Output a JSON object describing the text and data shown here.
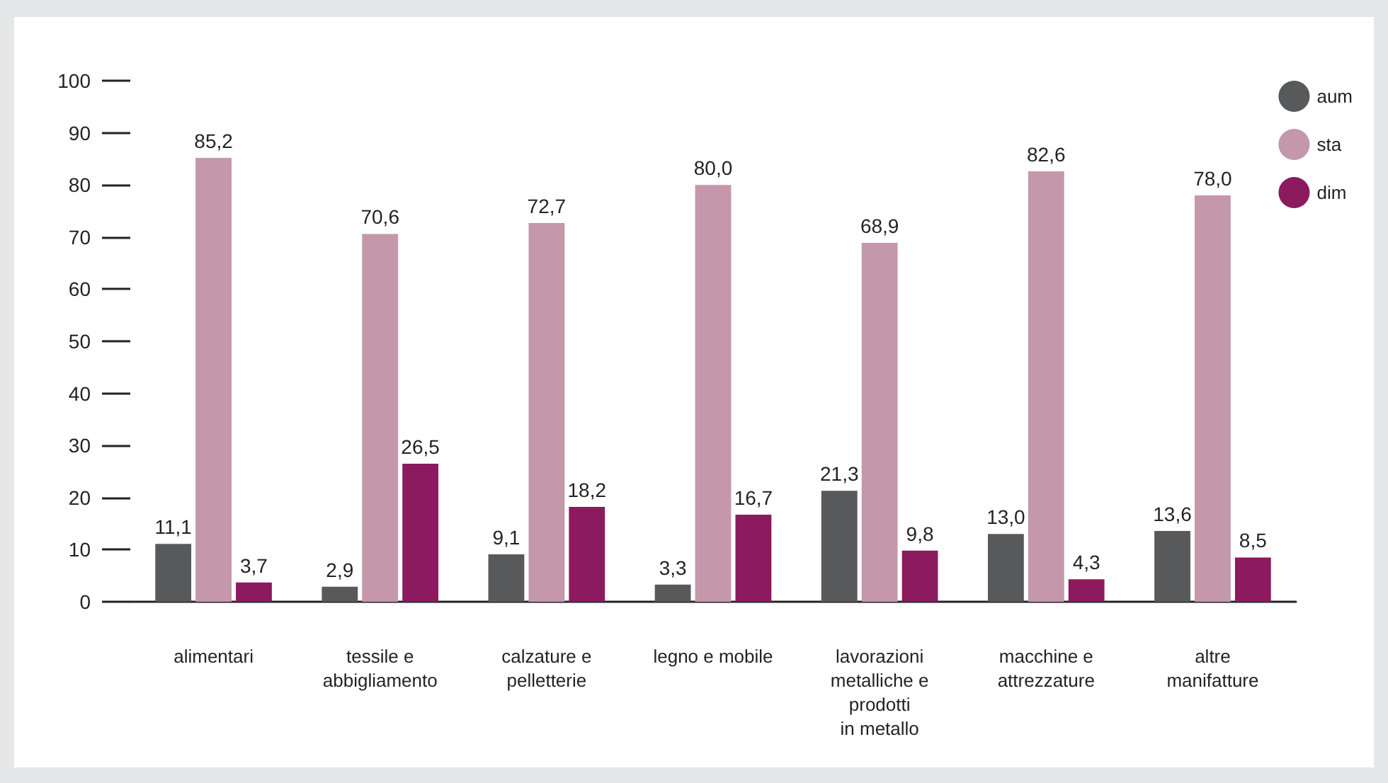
{
  "chart_data": {
    "type": "bar",
    "categories": [
      "alimentari",
      "tessile e\nabbigliamento",
      "calzature e\npelletterie",
      "legno e mobile",
      "lavorazioni\nmetalliche e\nprodotti\nin metallo",
      "macchine e\nattrezzature",
      "altre\nmanifatture"
    ],
    "series": [
      {
        "name": "aum",
        "color": "#58595b",
        "values": [
          11.1,
          2.9,
          9.1,
          3.3,
          21.3,
          13.0,
          13.6
        ],
        "value_labels": [
          "11,1",
          "2,9",
          "9,1",
          "3,3",
          "21,3",
          "13,0",
          "13,6"
        ]
      },
      {
        "name": "sta",
        "color": "#c497aa",
        "values": [
          85.2,
          70.6,
          72.7,
          80.0,
          68.9,
          82.6,
          78.0
        ],
        "value_labels": [
          "85,2",
          "70,6",
          "72,7",
          "80,0",
          "68,9",
          "82,6",
          "78,0"
        ]
      },
      {
        "name": "dim",
        "color": "#8c1a5e",
        "values": [
          3.7,
          26.5,
          18.2,
          16.7,
          9.8,
          4.3,
          8.5
        ],
        "value_labels": [
          "3,7",
          "26,5",
          "18,2",
          "16,7",
          "9,8",
          "4,3",
          "8,5"
        ]
      }
    ],
    "ylim": [
      0,
      100
    ],
    "yticks": [
      0,
      10,
      20,
      30,
      40,
      50,
      60,
      70,
      80,
      90,
      100
    ],
    "grid": false,
    "legend": "top right"
  }
}
